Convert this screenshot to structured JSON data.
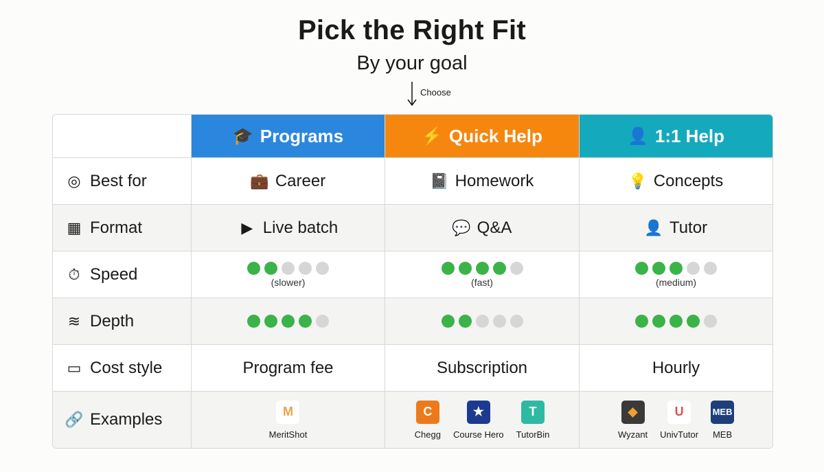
{
  "title": "Pick the Right Fit",
  "subtitle": "By your goal",
  "arrow_label": "Choose",
  "columns": [
    {
      "label": "Programs",
      "icon": "graduation-cap-icon",
      "glyph": "🎓",
      "color": "#2b87dd"
    },
    {
      "label": "Quick Help",
      "icon": "lightning-icon",
      "glyph": "⚡",
      "color": "#f5870f"
    },
    {
      "label": "1:1 Help",
      "icon": "headset-user-icon",
      "glyph": "👤",
      "color": "#14a9bd"
    }
  ],
  "rows": [
    {
      "label": "Best for",
      "icon": "target-icon",
      "glyph": "◎",
      "kind": "text",
      "cells": [
        {
          "text": "Career",
          "icon": "briefcase-icon",
          "glyph": "💼"
        },
        {
          "text": "Homework",
          "icon": "notebook-icon",
          "glyph": "📓"
        },
        {
          "text": "Concepts",
          "icon": "lightbulb-icon",
          "glyph": "💡"
        }
      ]
    },
    {
      "label": "Format",
      "icon": "grid-icon",
      "glyph": "▦",
      "kind": "text",
      "cells": [
        {
          "text": "Live batch",
          "icon": "video-play-icon",
          "glyph": "▶"
        },
        {
          "text": "Q&A",
          "icon": "chat-bubble-icon",
          "glyph": "💬"
        },
        {
          "text": "Tutor",
          "icon": "user-icon",
          "glyph": "👤"
        }
      ]
    },
    {
      "label": "Speed",
      "icon": "stopwatch-icon",
      "glyph": "⏱",
      "kind": "dots",
      "cells": [
        {
          "level": 2,
          "max": 5,
          "note": "(slower)"
        },
        {
          "level": 4,
          "max": 5,
          "note": "(fast)"
        },
        {
          "level": 3,
          "max": 5,
          "note": "(medium)"
        }
      ]
    },
    {
      "label": "Depth",
      "icon": "layers-icon",
      "glyph": "≋",
      "kind": "dots",
      "cells": [
        {
          "level": 4,
          "max": 5
        },
        {
          "level": 2,
          "max": 5
        },
        {
          "level": 4,
          "max": 5
        }
      ]
    },
    {
      "label": "Cost style",
      "icon": "wallet-icon",
      "glyph": "▭",
      "kind": "text",
      "cells": [
        {
          "text": "Program fee"
        },
        {
          "text": "Subscription"
        },
        {
          "text": "Hourly"
        }
      ]
    },
    {
      "label": "Examples",
      "icon": "link-icon",
      "glyph": "🔗",
      "kind": "examples",
      "cells": [
        {
          "items": [
            {
              "name": "MeritShot",
              "mark": "M",
              "bg": "#ffffff",
              "fg": "#f0a04b"
            }
          ]
        },
        {
          "items": [
            {
              "name": "Chegg",
              "mark": "C",
              "bg": "#ec7a1c",
              "fg": "#fff"
            },
            {
              "name": "Course Hero",
              "mark": "★",
              "bg": "#1c3a8f",
              "fg": "#fff"
            },
            {
              "name": "TutorBin",
              "mark": "T",
              "bg": "#2fb9a2",
              "fg": "#fff"
            }
          ]
        },
        {
          "items": [
            {
              "name": "Wyzant",
              "mark": "◆",
              "bg": "#3a3a3a",
              "fg": "#f0a030"
            },
            {
              "name": "UnivTutor",
              "mark": "U",
              "bg": "#ffffff",
              "fg": "#d9534f"
            },
            {
              "name": "MEB",
              "mark": "MEB",
              "bg": "#1f3f7a",
              "fg": "#fff"
            }
          ]
        }
      ]
    }
  ]
}
